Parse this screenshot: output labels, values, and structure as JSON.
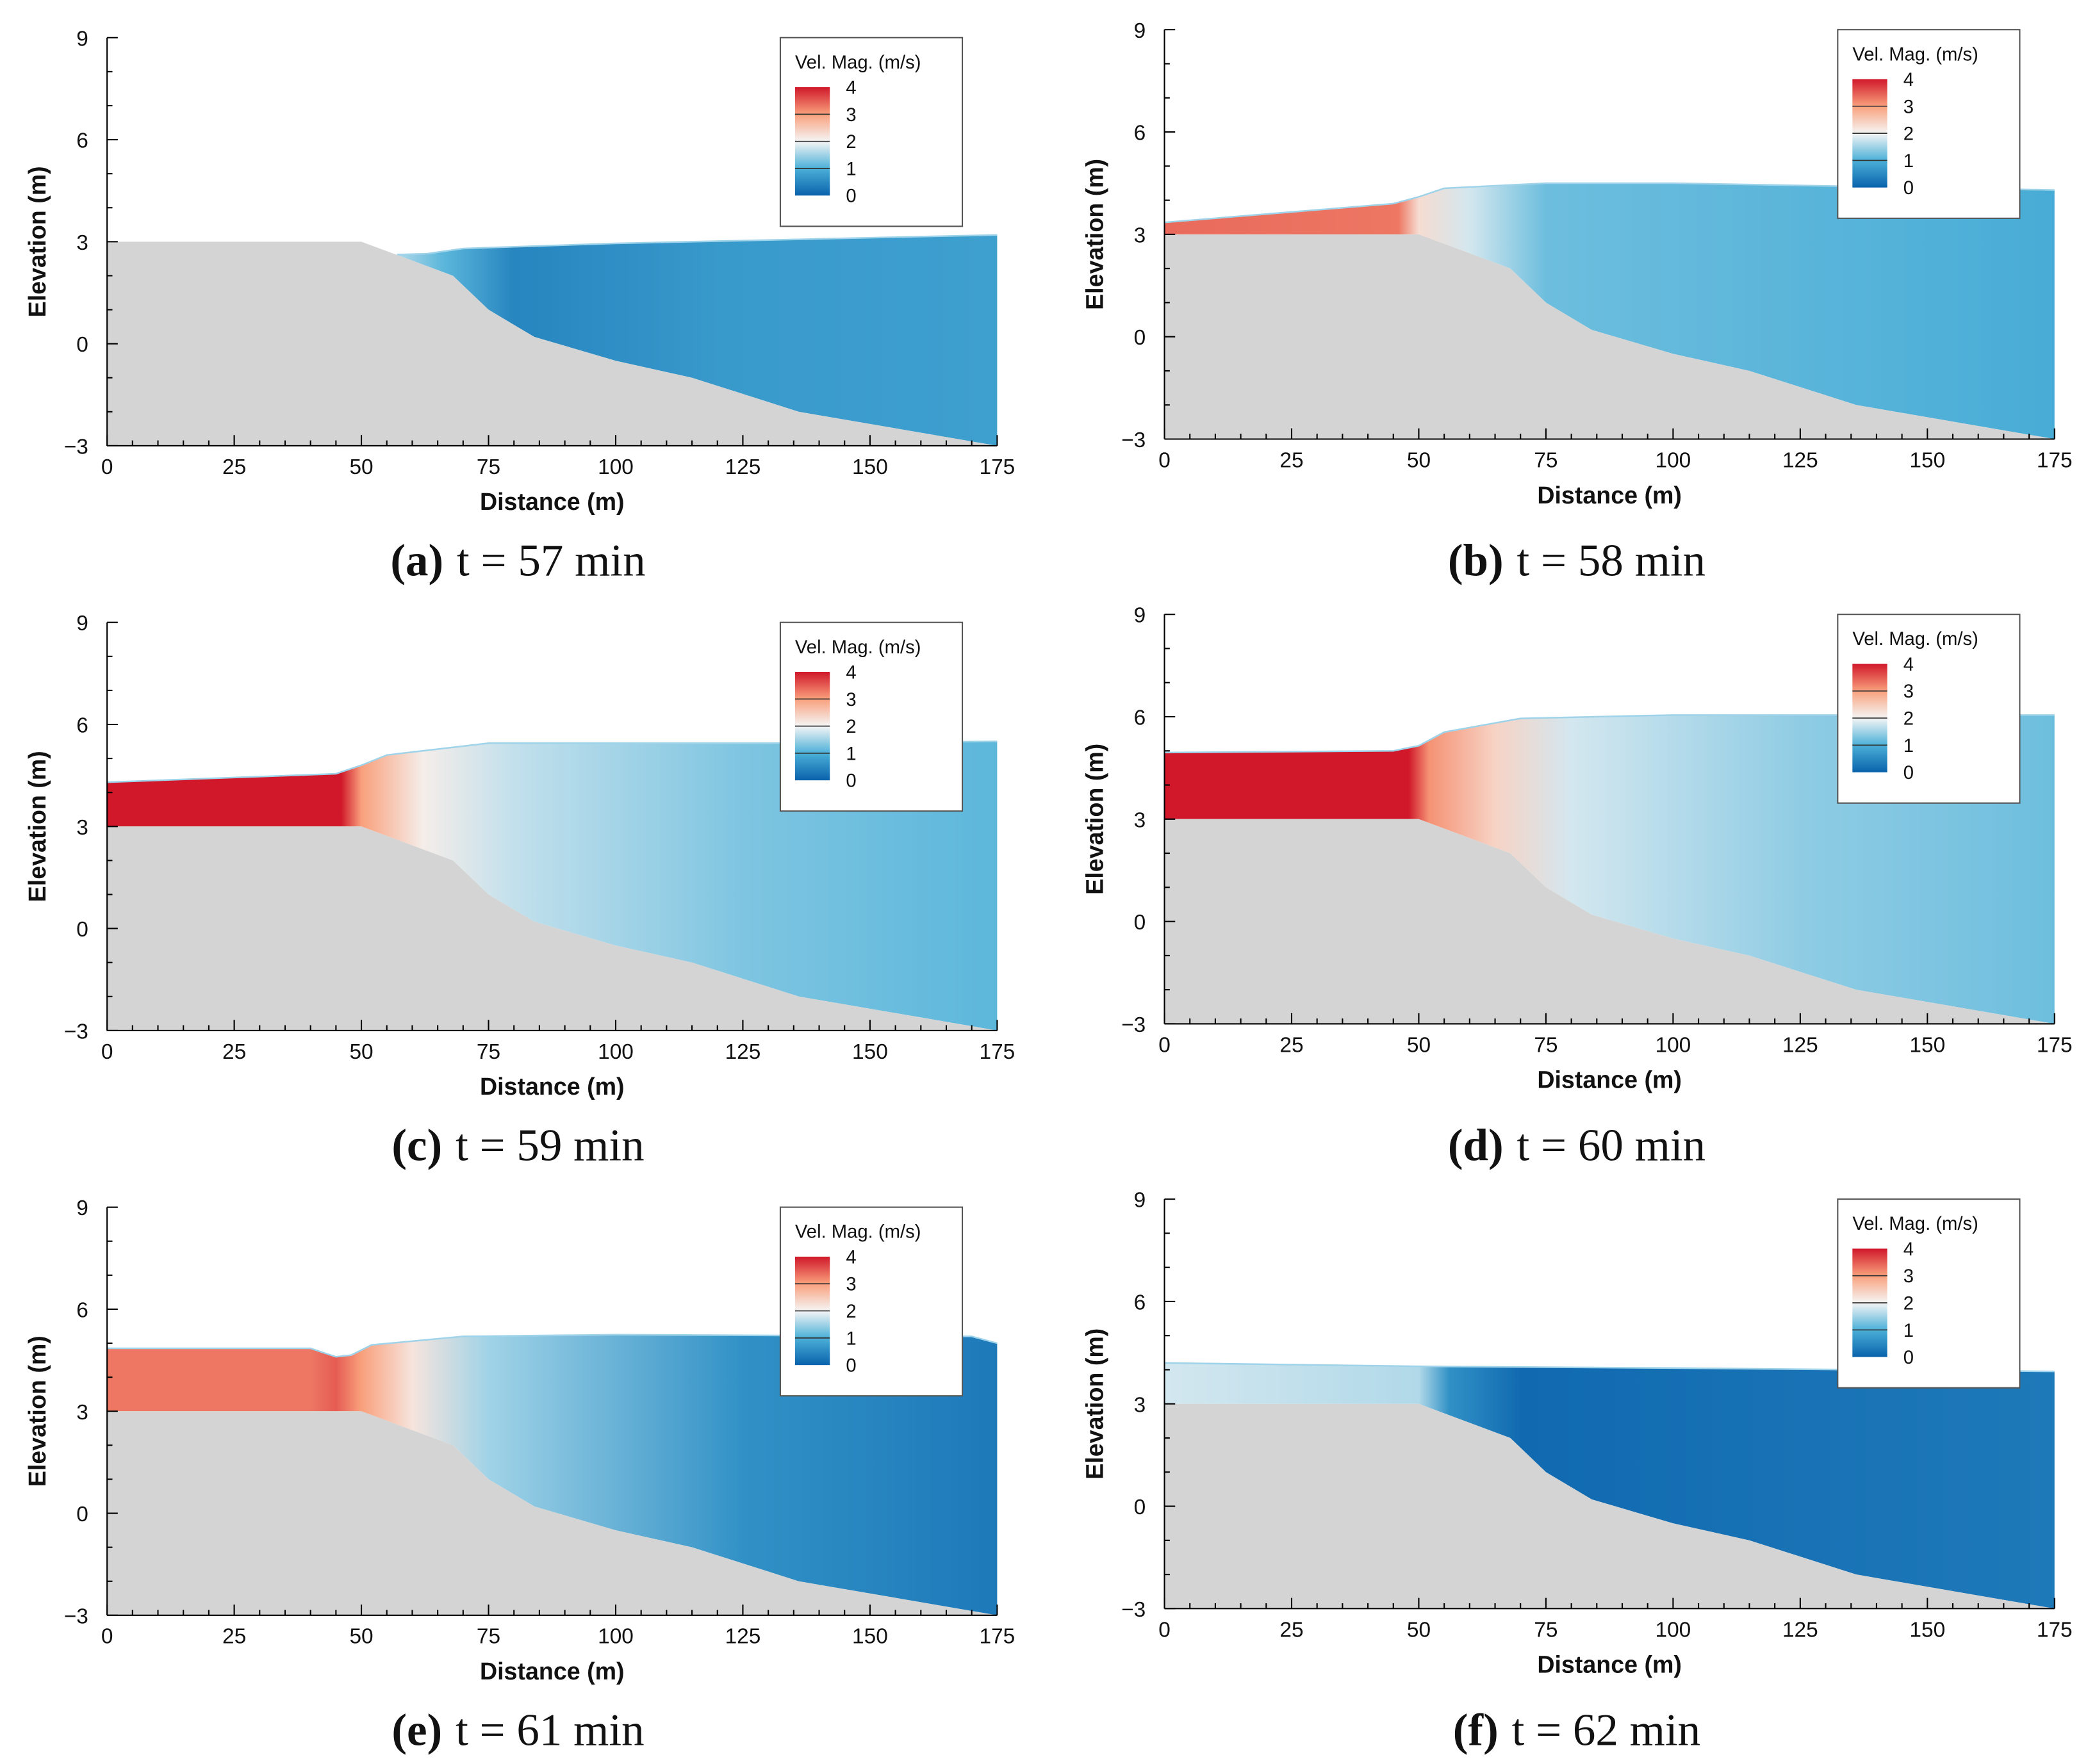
{
  "chart_data": {
    "type": "area",
    "xlabel": "Distance (m)",
    "ylabel": "Elevation (m)",
    "xlim": [
      0,
      175
    ],
    "ylim": [
      -3,
      9
    ],
    "xticks": [
      0,
      25,
      50,
      75,
      100,
      125,
      150,
      175
    ],
    "yticks": [
      -3,
      0,
      3,
      6,
      9
    ],
    "xtick_labels": [
      "0",
      "25",
      "50",
      "75",
      "100",
      "125",
      "150",
      "175"
    ],
    "ytick_labels": [
      "−3",
      "0",
      "3",
      "6",
      "9"
    ],
    "legend": {
      "title": "Vel. Mag. (m/s)",
      "levels": [
        "4",
        "3",
        "2",
        "1",
        "0"
      ],
      "placement": "top-right",
      "colormap": [
        [
          0,
          "#0a62ab"
        ],
        [
          1,
          "#4bb0d8"
        ],
        [
          2,
          "#f5f5f5"
        ],
        [
          3,
          "#f9a07c"
        ],
        [
          4,
          "#d0182a"
        ]
      ]
    },
    "bed_profile": [
      [
        0,
        3
      ],
      [
        50,
        3
      ],
      [
        68,
        2
      ],
      [
        75,
        1
      ],
      [
        84,
        0.2
      ],
      [
        100,
        -0.5
      ],
      [
        115,
        -1
      ],
      [
        136,
        -2
      ],
      [
        175,
        -3
      ]
    ],
    "bed_color": "#d4d4d4",
    "panels": [
      {
        "label": "(a)",
        "caption": "t = 57 min",
        "surface": [
          [
            57,
            2.62
          ],
          [
            63,
            2.65
          ],
          [
            70,
            2.8
          ],
          [
            100,
            2.95
          ],
          [
            175,
            3.2
          ]
        ],
        "velocity": [
          [
            57,
            1.6
          ],
          [
            66,
            1.1
          ],
          [
            80,
            0.45
          ],
          [
            120,
            0.7
          ],
          [
            175,
            0.8
          ]
        ]
      },
      {
        "label": "(b)",
        "caption": "t = 58 min",
        "surface": [
          [
            0,
            3.35
          ],
          [
            45,
            3.9
          ],
          [
            50,
            4.1
          ],
          [
            55,
            4.35
          ],
          [
            75,
            4.5
          ],
          [
            100,
            4.5
          ],
          [
            175,
            4.3
          ]
        ],
        "velocity": [
          [
            0,
            3.4
          ],
          [
            46,
            3.3
          ],
          [
            50,
            2.3
          ],
          [
            60,
            1.8
          ],
          [
            75,
            1.2
          ],
          [
            175,
            0.95
          ]
        ]
      },
      {
        "label": "(c)",
        "caption": "t = 59 min",
        "surface": [
          [
            0,
            4.3
          ],
          [
            45,
            4.55
          ],
          [
            50,
            4.8
          ],
          [
            55,
            5.1
          ],
          [
            75,
            5.45
          ],
          [
            130,
            5.45
          ],
          [
            175,
            5.5
          ]
        ],
        "velocity": [
          [
            0,
            4
          ],
          [
            46,
            4
          ],
          [
            50,
            3
          ],
          [
            62,
            2.1
          ],
          [
            80,
            1.7
          ],
          [
            125,
            1.3
          ],
          [
            175,
            1.1
          ]
        ]
      },
      {
        "label": "(d)",
        "caption": "t = 60 min",
        "surface": [
          [
            0,
            4.95
          ],
          [
            45,
            5.0
          ],
          [
            50,
            5.15
          ],
          [
            55,
            5.55
          ],
          [
            70,
            5.95
          ],
          [
            100,
            6.05
          ],
          [
            175,
            6.05
          ]
        ],
        "velocity": [
          [
            0,
            4
          ],
          [
            48,
            4
          ],
          [
            52,
            3.1
          ],
          [
            65,
            2.4
          ],
          [
            80,
            1.8
          ],
          [
            125,
            1.4
          ],
          [
            175,
            1.2
          ]
        ]
      },
      {
        "label": "(e)",
        "caption": "t = 61 min",
        "surface": [
          [
            0,
            4.85
          ],
          [
            40,
            4.85
          ],
          [
            45,
            4.6
          ],
          [
            48,
            4.65
          ],
          [
            52,
            4.95
          ],
          [
            70,
            5.2
          ],
          [
            100,
            5.25
          ],
          [
            170,
            5.2
          ],
          [
            175,
            5.0
          ]
        ],
        "velocity": [
          [
            0,
            3.3
          ],
          [
            40,
            3.3
          ],
          [
            45,
            3.5
          ],
          [
            50,
            3
          ],
          [
            60,
            2.2
          ],
          [
            75,
            1.5
          ],
          [
            125,
            0.6
          ],
          [
            175,
            0.3
          ]
        ]
      },
      {
        "label": "(f)",
        "caption": "t = 62 min",
        "surface": [
          [
            0,
            4.2
          ],
          [
            50,
            4.1
          ],
          [
            100,
            4.05
          ],
          [
            175,
            3.95
          ]
        ],
        "velocity": [
          [
            0,
            1.8
          ],
          [
            50,
            1.6
          ],
          [
            56,
            0.6
          ],
          [
            70,
            0.1
          ],
          [
            175,
            0.3
          ]
        ]
      }
    ]
  }
}
